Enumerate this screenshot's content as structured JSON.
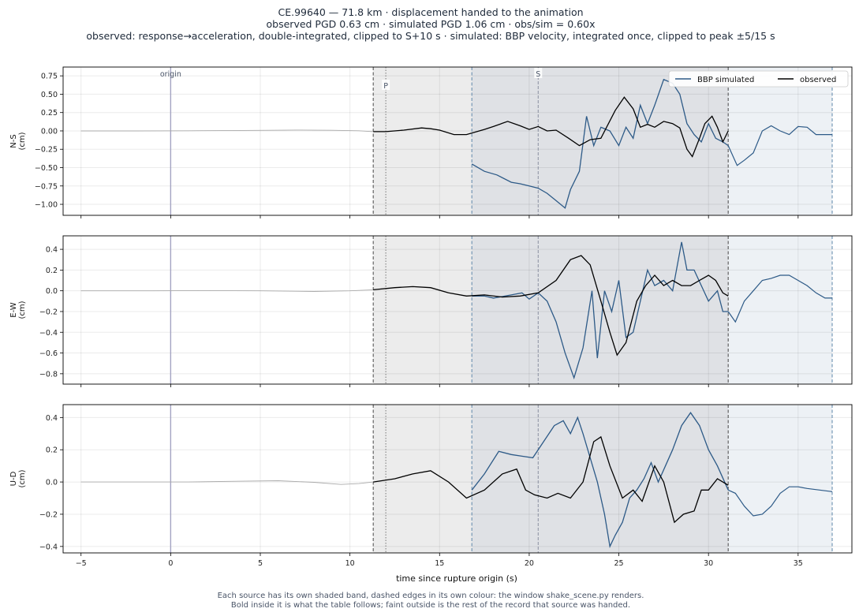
{
  "header": {
    "line1": "CE.99640  —  71.8 km   ·   displacement handed to the animation",
    "line2": "observed PGD 0.63 cm   ·   simulated PGD 1.06 cm   ·   obs/sim = 0.60x",
    "line3": "observed: response→acceleration, double-integrated, clipped to S+10 s   ·   simulated: BBP velocity, integrated once, clipped to peak ±5/15 s"
  },
  "footnote": {
    "line1": "Each source has its own shaded band, dashed edges in its own colour: the window shake_scene.py renders.",
    "line2": "Bold inside it is what the table follows;   faint outside is the rest of the record that source was handed."
  },
  "colors": {
    "simulated": "#2d5a87",
    "observed": "#000000",
    "observed_faint": "#aaaaaa",
    "obs_band": "#ececec",
    "overlap_band": "#dfe1e5",
    "sim_band": "#edf1f5",
    "origin_line": "#a3a3c2",
    "obs_edge": "#555555",
    "sim_edge": "#6a8fb0"
  },
  "chart_data": {
    "type": "line",
    "xlabel": "time since rupture origin (s)",
    "xlim": [
      -6,
      38
    ],
    "xticks": [
      -5,
      0,
      5,
      10,
      15,
      20,
      25,
      30,
      35
    ],
    "legend": {
      "placement": "top-right",
      "entries": [
        "BBP simulated",
        "observed"
      ]
    },
    "grid": true,
    "markers": {
      "origin": {
        "label": "origin",
        "t": 0
      },
      "P": {
        "label": "P",
        "t": 12.0
      },
      "S": {
        "label": "S",
        "t": 20.5
      }
    },
    "windows": {
      "observed": [
        11.3,
        31.1
      ],
      "simulated": [
        16.8,
        36.9
      ]
    },
    "panels": [
      {
        "ylabel": "N-S",
        "unit": "(cm)",
        "ylim": [
          -1.15,
          0.87
        ],
        "yticks": [
          -1.0,
          -0.75,
          -0.5,
          -0.25,
          0.0,
          0.25,
          0.5,
          0.75
        ],
        "ytick_labels": [
          "−1.00",
          "−0.75",
          "−0.50",
          "−0.25",
          "0.00",
          "0.25",
          "0.50",
          "0.75"
        ],
        "observed_faint": [
          [
            -5,
            0
          ],
          [
            -2,
            0
          ],
          [
            1,
            0.002
          ],
          [
            4,
            0.006
          ],
          [
            7,
            0.012
          ],
          [
            9,
            0.008
          ],
          [
            10.5,
            0.002
          ],
          [
            11.3,
            -0.01
          ]
        ],
        "observed": [
          [
            11.3,
            -0.01
          ],
          [
            12,
            -0.01
          ],
          [
            13,
            0.01
          ],
          [
            14,
            0.04
          ],
          [
            14.5,
            0.03
          ],
          [
            15,
            0.01
          ],
          [
            15.8,
            -0.05
          ],
          [
            16.5,
            -0.05
          ],
          [
            17.5,
            0.02
          ],
          [
            18,
            0.06
          ],
          [
            18.8,
            0.13
          ],
          [
            19.5,
            0.07
          ],
          [
            20,
            0.02
          ],
          [
            20.5,
            0.06
          ],
          [
            21,
            0.0
          ],
          [
            21.5,
            0.01
          ],
          [
            22.2,
            -0.1
          ],
          [
            22.8,
            -0.2
          ],
          [
            23.4,
            -0.12
          ],
          [
            24,
            -0.1
          ],
          [
            24.8,
            0.28
          ],
          [
            25.3,
            0.46
          ],
          [
            25.8,
            0.3
          ],
          [
            26.2,
            0.05
          ],
          [
            26.6,
            0.09
          ],
          [
            27,
            0.05
          ],
          [
            27.5,
            0.13
          ],
          [
            28,
            0.1
          ],
          [
            28.4,
            0.04
          ],
          [
            28.8,
            -0.25
          ],
          [
            29.1,
            -0.35
          ],
          [
            29.5,
            -0.1
          ],
          [
            29.8,
            0.1
          ],
          [
            30.2,
            0.2
          ],
          [
            30.5,
            0.05
          ],
          [
            30.8,
            -0.15
          ],
          [
            31.1,
            0.0
          ]
        ],
        "sim_faint": [
          [
            31.1,
            -0.2
          ],
          [
            31.6,
            -0.47
          ],
          [
            32,
            -0.4
          ],
          [
            32.5,
            -0.3
          ],
          [
            33,
            0.0
          ],
          [
            33.5,
            0.07
          ],
          [
            34,
            0.0
          ],
          [
            34.5,
            -0.05
          ],
          [
            35,
            0.06
          ],
          [
            35.5,
            0.05
          ],
          [
            36,
            -0.05
          ],
          [
            36.9,
            -0.05
          ]
        ],
        "simulated": [
          [
            16.8,
            -0.45
          ],
          [
            17.5,
            -0.55
          ],
          [
            18.2,
            -0.6
          ],
          [
            19,
            -0.7
          ],
          [
            19.5,
            -0.72
          ],
          [
            20,
            -0.75
          ],
          [
            20.5,
            -0.78
          ],
          [
            21,
            -0.85
          ],
          [
            21.5,
            -0.95
          ],
          [
            22,
            -1.05
          ],
          [
            22.3,
            -0.8
          ],
          [
            22.8,
            -0.55
          ],
          [
            23.2,
            0.2
          ],
          [
            23.6,
            -0.2
          ],
          [
            24,
            0.05
          ],
          [
            24.5,
            0.0
          ],
          [
            25,
            -0.2
          ],
          [
            25.4,
            0.05
          ],
          [
            25.8,
            -0.1
          ],
          [
            26.2,
            0.35
          ],
          [
            26.6,
            0.1
          ],
          [
            27,
            0.35
          ],
          [
            27.5,
            0.7
          ],
          [
            28,
            0.65
          ],
          [
            28.4,
            0.5
          ],
          [
            28.8,
            0.1
          ],
          [
            29.2,
            -0.05
          ],
          [
            29.6,
            -0.15
          ],
          [
            30,
            0.1
          ],
          [
            30.4,
            -0.1
          ],
          [
            30.8,
            -0.15
          ],
          [
            31.1,
            -0.2
          ]
        ]
      },
      {
        "ylabel": "E-W",
        "unit": "(cm)",
        "ylim": [
          -0.9,
          0.53
        ],
        "yticks": [
          -0.8,
          -0.6,
          -0.4,
          -0.2,
          0.0,
          0.2,
          0.4
        ],
        "ytick_labels": [
          "−0.8",
          "−0.6",
          "−0.4",
          "−0.2",
          "0.0",
          "0.2",
          "0.4"
        ],
        "observed_faint": [
          [
            -5,
            0
          ],
          [
            -1,
            0
          ],
          [
            2,
            0.002
          ],
          [
            5,
            0.0
          ],
          [
            8,
            -0.006
          ],
          [
            10,
            0.0
          ],
          [
            11.3,
            0.01
          ]
        ],
        "observed": [
          [
            11.3,
            0.01
          ],
          [
            12.5,
            0.03
          ],
          [
            13.5,
            0.04
          ],
          [
            14.5,
            0.03
          ],
          [
            15.5,
            -0.02
          ],
          [
            16.5,
            -0.05
          ],
          [
            17.5,
            -0.04
          ],
          [
            18.5,
            -0.06
          ],
          [
            19.5,
            -0.05
          ],
          [
            20.5,
            -0.02
          ],
          [
            21.5,
            0.1
          ],
          [
            22.3,
            0.3
          ],
          [
            22.9,
            0.34
          ],
          [
            23.4,
            0.25
          ],
          [
            24,
            -0.1
          ],
          [
            24.5,
            -0.4
          ],
          [
            24.9,
            -0.62
          ],
          [
            25.4,
            -0.5
          ],
          [
            26,
            -0.1
          ],
          [
            26.5,
            0.05
          ],
          [
            27,
            0.15
          ],
          [
            27.5,
            0.05
          ],
          [
            28,
            0.1
          ],
          [
            28.5,
            0.05
          ],
          [
            29,
            0.05
          ],
          [
            29.5,
            0.1
          ],
          [
            30,
            0.15
          ],
          [
            30.4,
            0.1
          ],
          [
            30.8,
            -0.02
          ],
          [
            31.1,
            -0.05
          ]
        ],
        "sim_faint": [
          [
            31.1,
            -0.2
          ],
          [
            31.5,
            -0.3
          ],
          [
            32,
            -0.1
          ],
          [
            32.5,
            0.0
          ],
          [
            33,
            0.1
          ],
          [
            33.5,
            0.12
          ],
          [
            34,
            0.15
          ],
          [
            34.5,
            0.15
          ],
          [
            35,
            0.1
          ],
          [
            35.5,
            0.05
          ],
          [
            36,
            -0.02
          ],
          [
            36.5,
            -0.07
          ],
          [
            36.9,
            -0.07
          ]
        ],
        "simulated": [
          [
            16.8,
            -0.05
          ],
          [
            17.5,
            -0.05
          ],
          [
            18,
            -0.07
          ],
          [
            19,
            -0.04
          ],
          [
            19.6,
            -0.02
          ],
          [
            20,
            -0.08
          ],
          [
            20.5,
            -0.02
          ],
          [
            21,
            -0.1
          ],
          [
            21.5,
            -0.3
          ],
          [
            22,
            -0.6
          ],
          [
            22.5,
            -0.84
          ],
          [
            23,
            -0.55
          ],
          [
            23.5,
            0.0
          ],
          [
            23.8,
            -0.65
          ],
          [
            24.2,
            0.0
          ],
          [
            24.6,
            -0.2
          ],
          [
            25,
            0.1
          ],
          [
            25.4,
            -0.45
          ],
          [
            25.8,
            -0.4
          ],
          [
            26.2,
            -0.1
          ],
          [
            26.6,
            0.2
          ],
          [
            27,
            0.05
          ],
          [
            27.5,
            0.1
          ],
          [
            28,
            0.0
          ],
          [
            28.5,
            0.47
          ],
          [
            28.8,
            0.2
          ],
          [
            29.2,
            0.2
          ],
          [
            29.6,
            0.05
          ],
          [
            30,
            -0.1
          ],
          [
            30.5,
            0.0
          ],
          [
            30.8,
            -0.2
          ],
          [
            31.1,
            -0.2
          ]
        ]
      },
      {
        "ylabel": "U-D",
        "unit": "(cm)",
        "ylim": [
          -0.44,
          0.48
        ],
        "yticks": [
          -0.4,
          -0.2,
          0.0,
          0.2,
          0.4
        ],
        "ytick_labels": [
          "−0.4",
          "−0.2",
          "0.0",
          "0.2",
          "0.4"
        ],
        "observed_faint": [
          [
            -5,
            0
          ],
          [
            -2,
            0
          ],
          [
            1,
            0.0
          ],
          [
            4,
            0.005
          ],
          [
            6,
            0.008
          ],
          [
            8,
            -0.002
          ],
          [
            9.5,
            -0.015
          ],
          [
            10.5,
            -0.01
          ],
          [
            11.3,
            0.0
          ]
        ],
        "observed": [
          [
            11.3,
            0.0
          ],
          [
            12.5,
            0.02
          ],
          [
            13.5,
            0.05
          ],
          [
            14.5,
            0.07
          ],
          [
            15.5,
            0.0
          ],
          [
            16.5,
            -0.1
          ],
          [
            17.5,
            -0.05
          ],
          [
            18.5,
            0.05
          ],
          [
            19.3,
            0.08
          ],
          [
            19.8,
            -0.05
          ],
          [
            20.3,
            -0.08
          ],
          [
            21,
            -0.1
          ],
          [
            21.6,
            -0.07
          ],
          [
            22.3,
            -0.1
          ],
          [
            23,
            0.0
          ],
          [
            23.6,
            0.25
          ],
          [
            24,
            0.28
          ],
          [
            24.5,
            0.1
          ],
          [
            25.2,
            -0.1
          ],
          [
            25.8,
            -0.05
          ],
          [
            26.3,
            -0.12
          ],
          [
            27,
            0.1
          ],
          [
            27.5,
            0.0
          ],
          [
            28.1,
            -0.25
          ],
          [
            28.6,
            -0.2
          ],
          [
            29.2,
            -0.18
          ],
          [
            29.6,
            -0.05
          ],
          [
            30,
            -0.05
          ],
          [
            30.5,
            0.02
          ],
          [
            31.1,
            -0.02
          ]
        ],
        "sim_faint": [
          [
            31.1,
            -0.05
          ],
          [
            31.5,
            -0.07
          ],
          [
            32,
            -0.15
          ],
          [
            32.5,
            -0.21
          ],
          [
            33,
            -0.2
          ],
          [
            33.5,
            -0.15
          ],
          [
            34,
            -0.07
          ],
          [
            34.5,
            -0.03
          ],
          [
            35,
            -0.03
          ],
          [
            35.5,
            -0.04
          ],
          [
            36.2,
            -0.05
          ],
          [
            36.9,
            -0.06
          ]
        ],
        "simulated": [
          [
            16.8,
            -0.05
          ],
          [
            17.5,
            0.05
          ],
          [
            18.3,
            0.19
          ],
          [
            19,
            0.17
          ],
          [
            19.6,
            0.16
          ],
          [
            20.2,
            0.15
          ],
          [
            20.8,
            0.25
          ],
          [
            21.4,
            0.35
          ],
          [
            21.9,
            0.38
          ],
          [
            22.3,
            0.3
          ],
          [
            22.7,
            0.4
          ],
          [
            23,
            0.3
          ],
          [
            23.4,
            0.15
          ],
          [
            23.8,
            0.0
          ],
          [
            24.2,
            -0.2
          ],
          [
            24.5,
            -0.4
          ],
          [
            24.8,
            -0.33
          ],
          [
            25.2,
            -0.25
          ],
          [
            25.6,
            -0.1
          ],
          [
            26,
            -0.05
          ],
          [
            26.4,
            0.02
          ],
          [
            26.8,
            0.12
          ],
          [
            27.2,
            0.0
          ],
          [
            27.6,
            0.1
          ],
          [
            28,
            0.2
          ],
          [
            28.5,
            0.35
          ],
          [
            29,
            0.43
          ],
          [
            29.5,
            0.35
          ],
          [
            30,
            0.2
          ],
          [
            30.5,
            0.1
          ],
          [
            31.1,
            -0.05
          ]
        ]
      }
    ]
  }
}
